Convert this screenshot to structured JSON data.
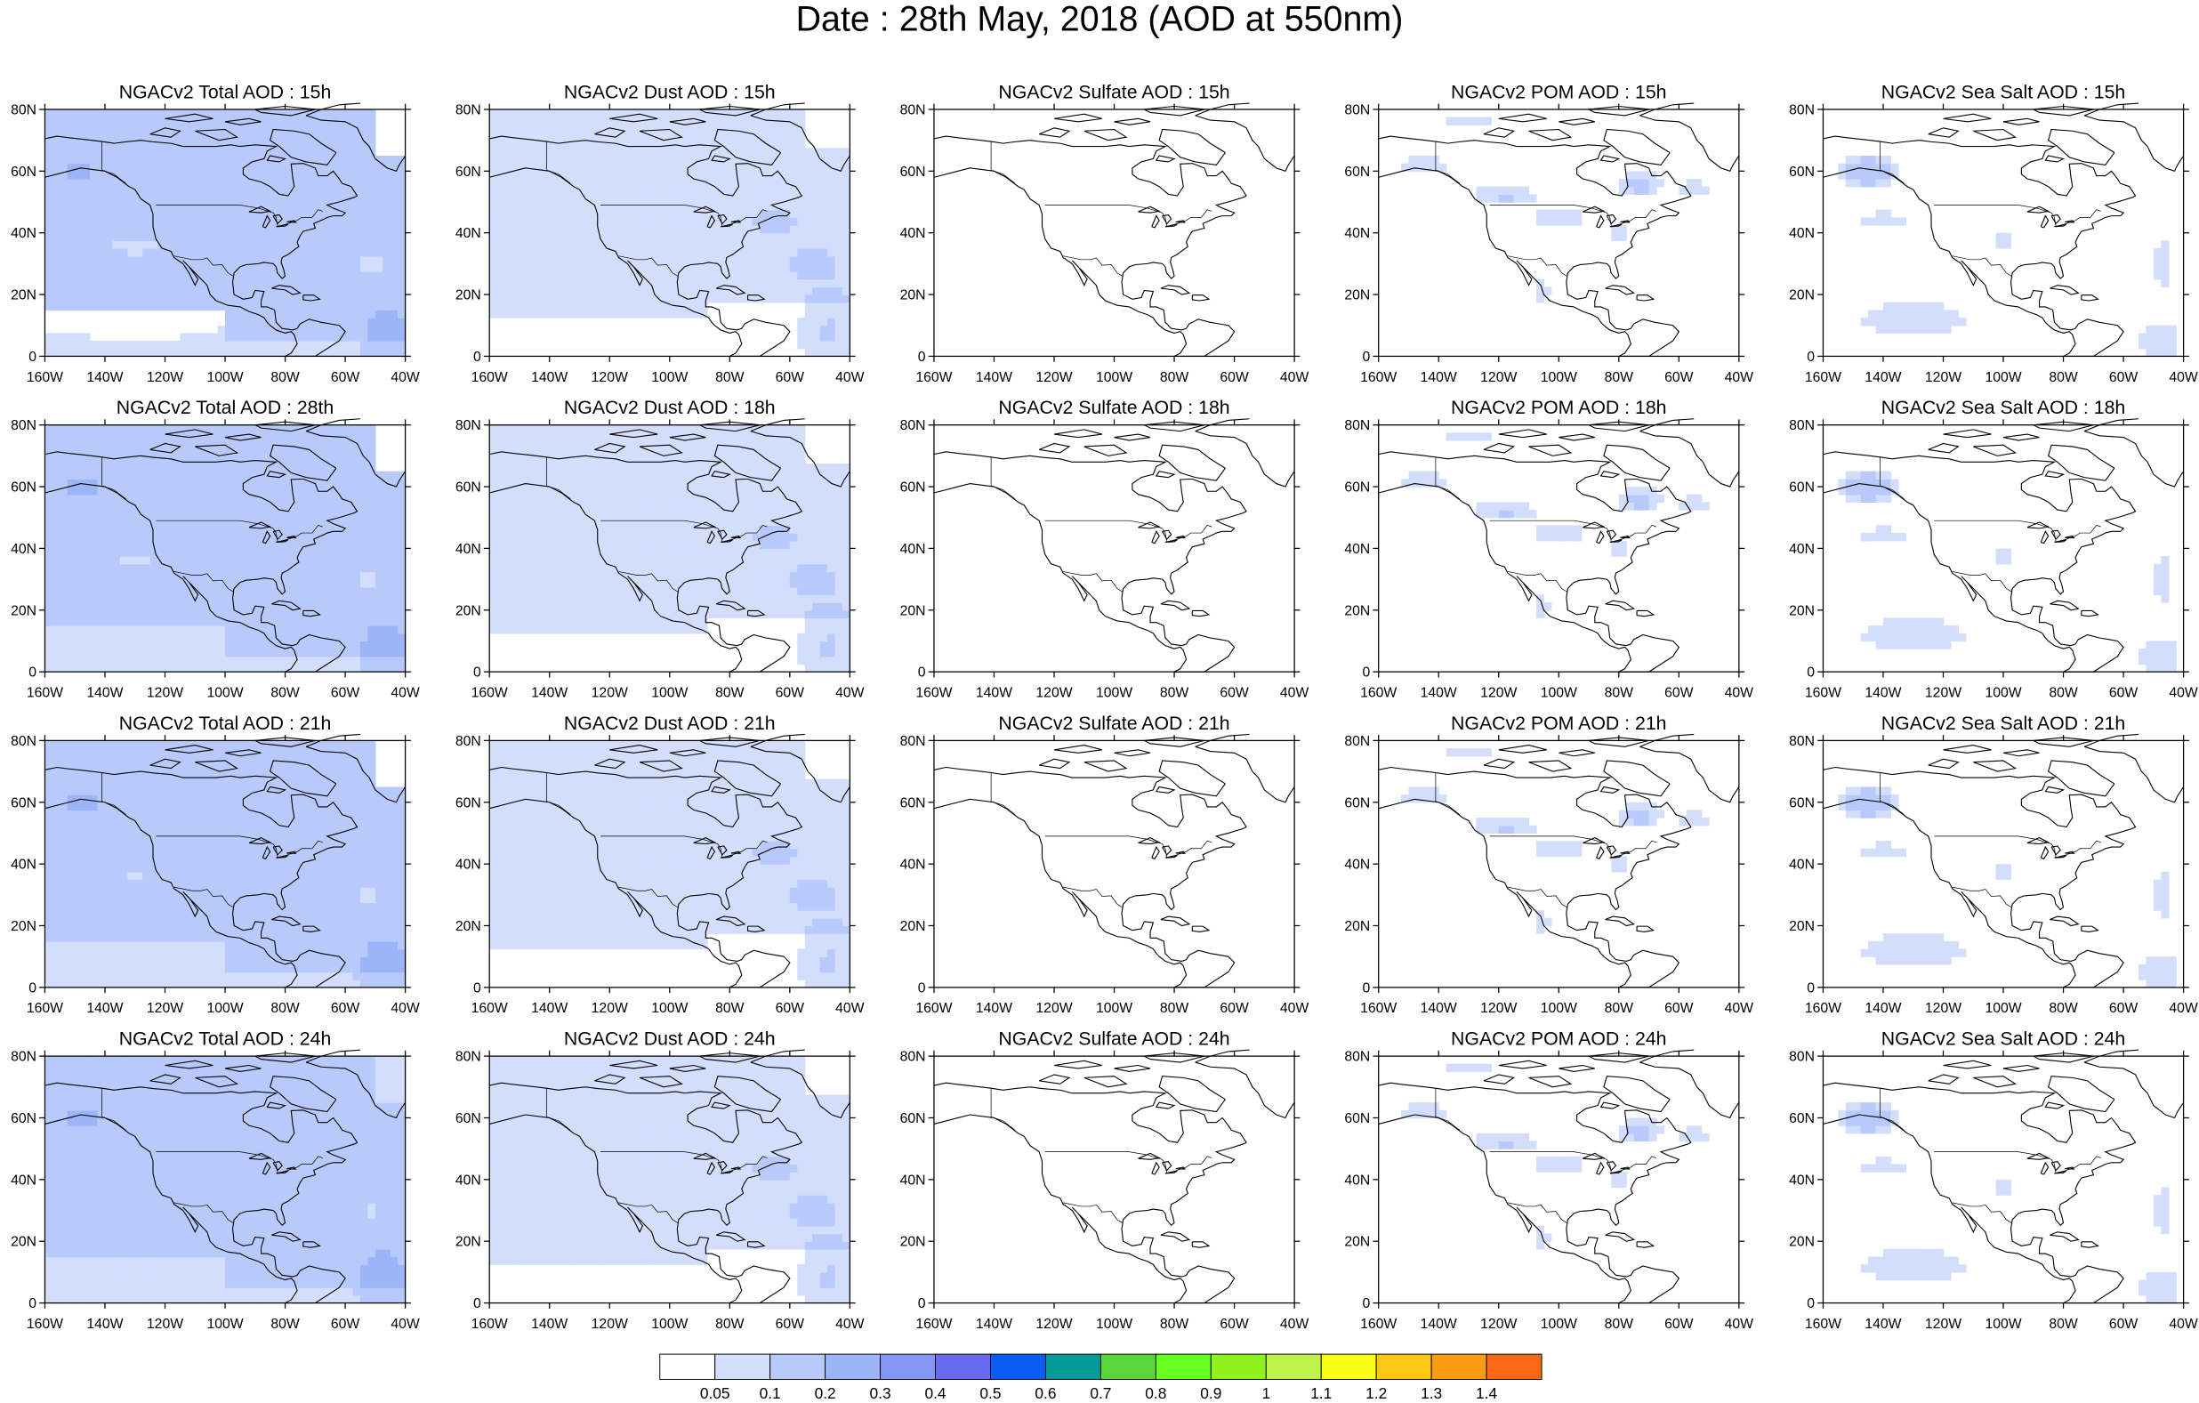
{
  "title": "Date : 28th May, 2018 (AOD at 550nm)",
  "axes": {
    "lon_ticks": [
      "160W",
      "140W",
      "120W",
      "100W",
      "80W",
      "60W",
      "40W"
    ],
    "lat_ticks": [
      "0",
      "20N",
      "40N",
      "60N",
      "80N"
    ],
    "lon_range": [
      -160,
      -40
    ],
    "lat_range": [
      0,
      80
    ]
  },
  "colors": {
    "levels": [
      "#ffffff",
      "#d3defd",
      "#b8cafb",
      "#9cb4f8",
      "#8497f6",
      "#6a69f2",
      "#0a5cf4",
      "#079a9a",
      "#5ad63b",
      "#66ff22",
      "#8ef21f",
      "#bdf34c",
      "#fbff14",
      "#fbc814",
      "#fb9b14",
      "#fb6814",
      "#fb2c14"
    ]
  },
  "colorbar": {
    "labels": [
      "0.05",
      "0.1",
      "0.2",
      "0.3",
      "0.4",
      "0.5",
      "0.6",
      "0.7",
      "0.8",
      "0.9",
      "1",
      "1.1",
      "1.2",
      "1.3",
      "1.4"
    ]
  },
  "panels": [
    {
      "title": "NGACv2 Total AOD : 15h",
      "kind": "total"
    },
    {
      "title": "NGACv2 Dust AOD : 15h",
      "kind": "dust"
    },
    {
      "title": "NGACv2 Sulfate AOD : 15h",
      "kind": "sulfate"
    },
    {
      "title": "NGACv2 POM AOD : 15h",
      "kind": "pom"
    },
    {
      "title": "NGACv2 Sea Salt AOD : 15h",
      "kind": "seasalt"
    },
    {
      "title": "NGACv2 Total AOD : 28th",
      "kind": "total"
    },
    {
      "title": "NGACv2 Dust AOD : 18h",
      "kind": "dust"
    },
    {
      "title": "NGACv2 Sulfate AOD : 18h",
      "kind": "sulfate"
    },
    {
      "title": "NGACv2 POM AOD : 18h",
      "kind": "pom"
    },
    {
      "title": "NGACv2 Sea Salt AOD : 18h",
      "kind": "seasalt"
    },
    {
      "title": "NGACv2 Total AOD : 21h",
      "kind": "total"
    },
    {
      "title": "NGACv2 Dust AOD : 21h",
      "kind": "dust"
    },
    {
      "title": "NGACv2 Sulfate AOD : 21h",
      "kind": "sulfate"
    },
    {
      "title": "NGACv2 POM AOD : 21h",
      "kind": "pom"
    },
    {
      "title": "NGACv2 Sea Salt AOD : 21h",
      "kind": "seasalt"
    },
    {
      "title": "NGACv2 Total AOD : 24h",
      "kind": "total"
    },
    {
      "title": "NGACv2 Dust AOD : 24h",
      "kind": "dust"
    },
    {
      "title": "NGACv2 Sulfate AOD : 24h",
      "kind": "sulfate"
    },
    {
      "title": "NGACv2 POM AOD : 24h",
      "kind": "pom"
    },
    {
      "title": "NGACv2 Sea Salt  AOD : 24h",
      "kind": "seasalt"
    }
  ]
}
